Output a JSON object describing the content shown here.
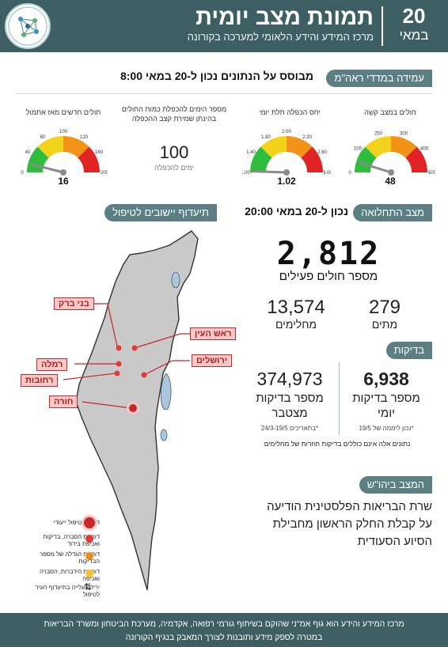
{
  "header": {
    "title": "תמונת מצב יומית",
    "subtitle": "מרכז המידע והידע הלאומי למערכה בקורונה",
    "date_day": "20",
    "date_month": "במאי"
  },
  "indices": {
    "pill": "עמידה במדדי ראה\"מ",
    "note": "מבוסס על הנתונים נכון ל-20 במאי 8:00",
    "gauges": [
      {
        "label": "חולים במצב קשה",
        "value": 48,
        "display": "48",
        "min": 0,
        "max": 500,
        "ticks": [
          "0",
          "100",
          "250",
          "300",
          "400",
          "500"
        ],
        "top_label": "250"
      },
      {
        "label": "יחס הכפלה תלת יומי",
        "value": 1.02,
        "display": "1.02",
        "min": 1.0,
        "max": 3.0,
        "ticks": [
          "1.00",
          "1.40",
          "1.80",
          "2.00",
          "2.20",
          "2.60",
          "3.00"
        ],
        "top_label": "2.00"
      },
      {
        "label": "חולים חדשים מאז אתמול",
        "value": 16,
        "display": "16",
        "min": 0,
        "max": 200,
        "ticks": [
          "0",
          "40",
          "80",
          "100",
          "120",
          "160",
          "200"
        ],
        "top_label": "100"
      }
    ],
    "doubling": {
      "label": "מספר הימים להכפלת כמות החולים בהינתן שמירת קצב ההכפלה",
      "value": "100",
      "sub": "ימים להכפלה"
    }
  },
  "outbreak": {
    "pill": "מצב התחלואה",
    "note": "נכון ל-20 במאי 20:00",
    "active_value": "2,812",
    "active_label": "מספר חולים פעילים",
    "deaths_value": "279",
    "deaths_label": "מתים",
    "recovered_value": "13,574",
    "recovered_label": "מחלימים"
  },
  "tests": {
    "pill": "בדיקות",
    "daily_value": "6,938",
    "daily_label_1": "מספר בדיקות",
    "daily_label_2": "יומי",
    "daily_note": "*נכון ליממה של 19/5",
    "total_value": "374,973",
    "total_label_1": "מספר בדיקות",
    "total_label_2": "מצטבר",
    "total_note": "*בתאריכים 24/3-19/5",
    "footnote": "נתונים אלה אינם כוללים בדיקות חוזרות של מחלימים"
  },
  "judea": {
    "pill": "המצב ביהו\"ש",
    "lines": [
      "שרת הבריאות הפלסטינית הודיעה",
      "על קבלת החלק הראשון מחבילת",
      "הסיוע הסעודית"
    ]
  },
  "map": {
    "pill": "תיעדוף יישובים לטיפול",
    "cities": [
      {
        "name": "בני ברק"
      },
      {
        "name": "ראש העין"
      },
      {
        "name": "רמלה"
      },
      {
        "name": "ירושלים"
      },
      {
        "name": "רחובות"
      },
      {
        "name": "חורה"
      }
    ],
    "legend": [
      {
        "label": "דורשת טיפול ייעודי",
        "color": "#c62828"
      },
      {
        "label": "דורשת הסברה, בדיקות ואכיפת בידוד",
        "color": "#e53935"
      },
      {
        "label": "דורשת הגדלה של מספר הבדיקות",
        "color": "#ef8a1f"
      },
      {
        "label": "דורשת הידברות, הסברה ואכיפה",
        "color": "#f4c430"
      },
      {
        "label": "ירידה/עלייה בתיעדוף העיר לטיפול",
        "color": "#222222"
      }
    ]
  },
  "footer": {
    "line1": "מרכז המידע והידע הוא גוף אמ\"ני שהוקם בשיתוף גורמי רפואה, אקדמיה, מערכת הביטחון ומשרד הבריאות",
    "line2": "במטרה לספק מידע ותובנות לצורך המאבק בנגיף הקורונה"
  },
  "colors": {
    "header": "#3d5f63",
    "pill": "#5b7f82",
    "gauge_green": "#2ebd3c",
    "gauge_yellow": "#f2d21a",
    "gauge_orange": "#f29318",
    "gauge_red": "#e02323",
    "map_fill": "#c9c9c9",
    "water": "#a9c6df",
    "alert": "#c62828"
  }
}
